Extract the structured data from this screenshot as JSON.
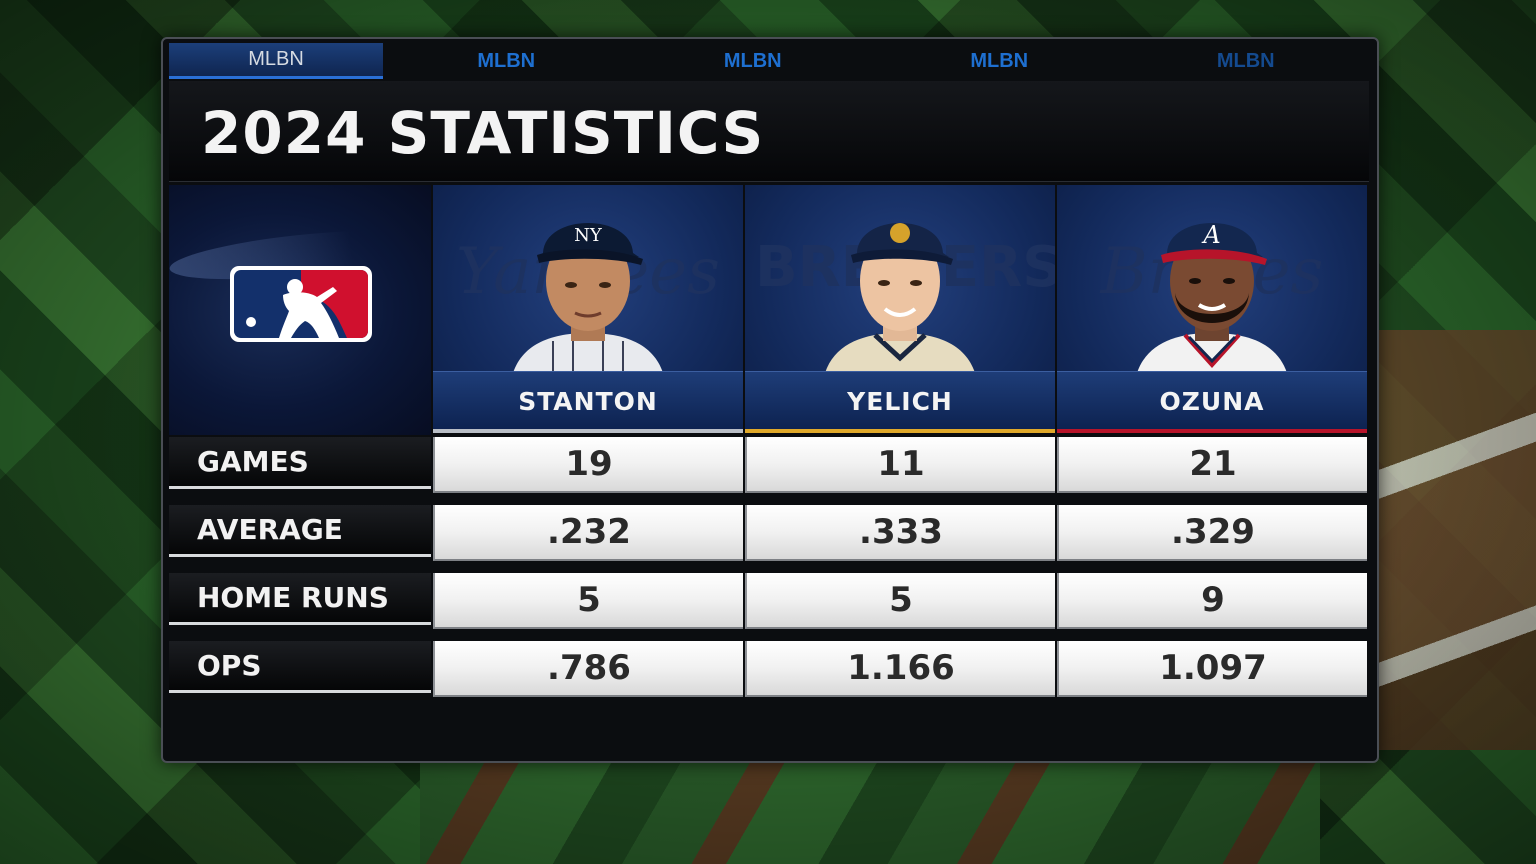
{
  "network_tabs": [
    "MLBN",
    "MLBN",
    "MLBN",
    "MLBN",
    "MLBN"
  ],
  "title": "2024 STATISTICS",
  "players": [
    {
      "name": "STANTON",
      "team_script": "Yankees",
      "stripe_color": "#b9bec6"
    },
    {
      "name": "YELICH",
      "team_script": "BREWERS",
      "stripe_color": "#e0a92a"
    },
    {
      "name": "OZUNA",
      "team_script": "Braves",
      "stripe_color": "#b7142a"
    }
  ],
  "stats": [
    {
      "label": "GAMES",
      "values": [
        "19",
        "11",
        "21"
      ]
    },
    {
      "label": "AVERAGE",
      "values": [
        ".232",
        ".333",
        ".329"
      ]
    },
    {
      "label": "HOME RUNS",
      "values": [
        "5",
        "5",
        "9"
      ]
    },
    {
      "label": "OPS",
      "values": [
        ".786",
        "1.166",
        "1.097"
      ]
    }
  ]
}
